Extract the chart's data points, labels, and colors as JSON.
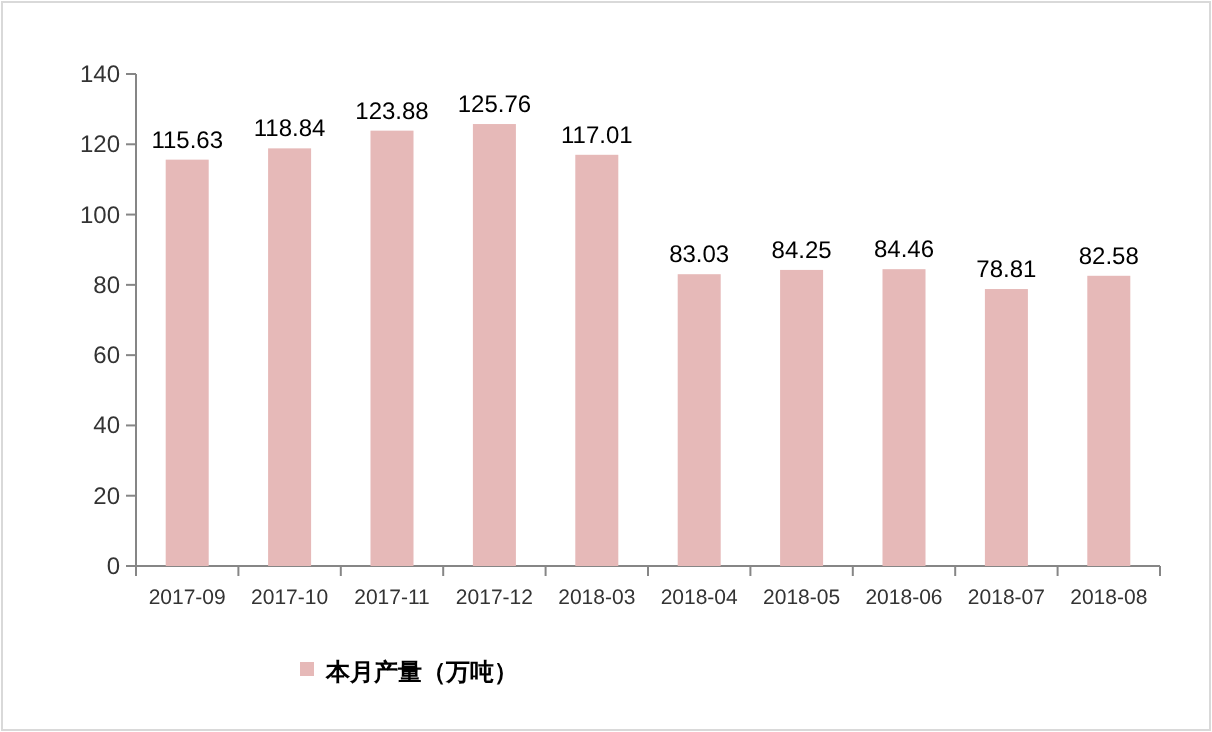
{
  "chart_data": {
    "type": "bar",
    "categories": [
      "2017-09",
      "2017-10",
      "2017-11",
      "2017-12",
      "2018-03",
      "2018-04",
      "2018-05",
      "2018-06",
      "2018-07",
      "2018-08"
    ],
    "series": [
      {
        "name": "本月产量（万吨）",
        "color": "#e6b9b8",
        "values": [
          115.63,
          118.84,
          123.88,
          125.76,
          117.01,
          83.03,
          84.25,
          84.46,
          78.81,
          82.58
        ]
      }
    ],
    "ylim": [
      0,
      140
    ],
    "yticks": [
      0,
      20,
      40,
      60,
      80,
      100,
      120,
      140
    ],
    "data_labels": true,
    "grid": false,
    "legend": "bottom"
  }
}
